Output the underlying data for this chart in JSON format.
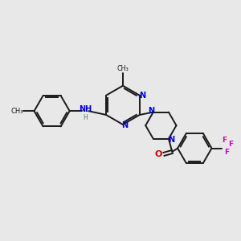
{
  "background_color": "#e8e8e8",
  "bond_color": "#1a1a1a",
  "N_color": "#0000cc",
  "O_color": "#cc0000",
  "F_color": "#cc00cc",
  "H_color": "#2e8b57",
  "figsize": [
    3.0,
    3.0
  ],
  "dpi": 100,
  "xlim": [
    0,
    10
  ],
  "ylim": [
    0,
    10
  ]
}
